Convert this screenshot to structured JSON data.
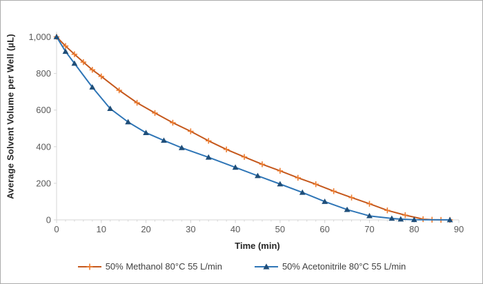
{
  "chart_data": {
    "type": "line",
    "title": "",
    "xlabel": "Time (min)",
    "ylabel": "Average Solvent Volume per Well (µL)",
    "xlim": [
      0,
      90
    ],
    "ylim": [
      0,
      1000
    ],
    "grid": "off",
    "legend_position": "bottom",
    "x_ticks": [
      {
        "v": 0,
        "label": "0"
      },
      {
        "v": 10,
        "label": "10"
      },
      {
        "v": 20,
        "label": "20"
      },
      {
        "v": 30,
        "label": "30"
      },
      {
        "v": 40,
        "label": "40"
      },
      {
        "v": 50,
        "label": "50"
      },
      {
        "v": 60,
        "label": "60"
      },
      {
        "v": 70,
        "label": "70"
      },
      {
        "v": 80,
        "label": "80"
      },
      {
        "v": 90,
        "label": "90"
      }
    ],
    "x_minor_tick_step": 2,
    "y_ticks": [
      {
        "v": 0,
        "label": "0"
      },
      {
        "v": 200,
        "label": "200"
      },
      {
        "v": 400,
        "label": "400"
      },
      {
        "v": 600,
        "label": "600"
      },
      {
        "v": 800,
        "label": "800"
      },
      {
        "v": 1000,
        "label": "1,000"
      }
    ],
    "series": [
      {
        "name": "50% Methanol 80°C 55 L/min",
        "marker": "plus",
        "line_color": "#C5581C",
        "marker_color": "#ED7D31",
        "points": [
          [
            0,
            1000
          ],
          [
            2,
            950
          ],
          [
            4,
            905
          ],
          [
            6,
            862
          ],
          [
            8,
            820
          ],
          [
            10,
            784
          ],
          [
            14,
            708
          ],
          [
            18,
            640
          ],
          [
            22,
            584
          ],
          [
            26,
            531
          ],
          [
            30,
            484
          ],
          [
            34,
            432
          ],
          [
            38,
            385
          ],
          [
            42,
            344
          ],
          [
            46,
            304
          ],
          [
            50,
            268
          ],
          [
            54,
            230
          ],
          [
            58,
            195
          ],
          [
            62,
            157
          ],
          [
            66,
            122
          ],
          [
            70,
            88
          ],
          [
            74,
            52
          ],
          [
            78,
            26
          ],
          [
            82,
            4
          ],
          [
            84,
            1
          ],
          [
            86,
            0
          ],
          [
            88,
            0
          ]
        ]
      },
      {
        "name": "50% Acetonitrile 80°C 55 L/min",
        "marker": "triangle-up",
        "line_color": "#2E75B6",
        "marker_color": "#1F4E79",
        "points": [
          [
            0,
            1000
          ],
          [
            2,
            920
          ],
          [
            4,
            855
          ],
          [
            8,
            725
          ],
          [
            12,
            608
          ],
          [
            16,
            535
          ],
          [
            20,
            476
          ],
          [
            24,
            434
          ],
          [
            28,
            394
          ],
          [
            34,
            342
          ],
          [
            40,
            287
          ],
          [
            45,
            241
          ],
          [
            50,
            196
          ],
          [
            55,
            150
          ],
          [
            60,
            100
          ],
          [
            65,
            56
          ],
          [
            70,
            22
          ],
          [
            75,
            8
          ],
          [
            77,
            4
          ],
          [
            80,
            1
          ],
          [
            88,
            0
          ]
        ]
      }
    ]
  },
  "colors": {
    "background": "#FFFFFF",
    "frame_border": "#ABABAB",
    "axis_line": "#D6D6D6",
    "tick_label": "#595959",
    "axis_title": "#262626",
    "legend_text": "#404040"
  }
}
